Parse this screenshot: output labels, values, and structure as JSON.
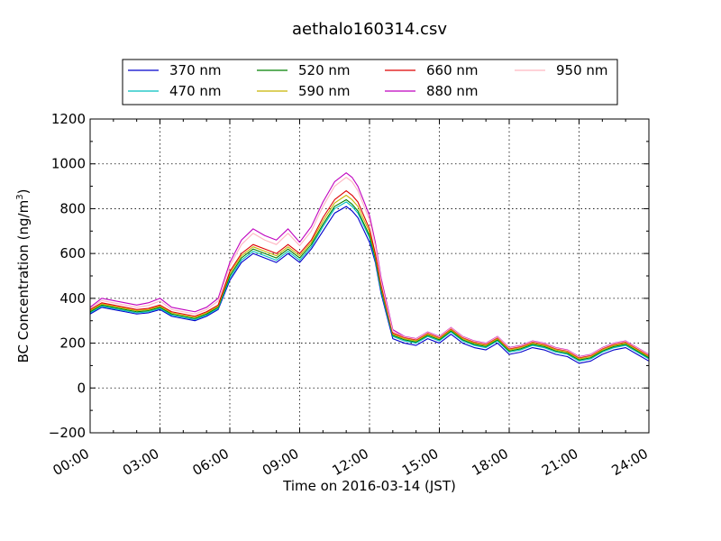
{
  "chart_data": {
    "type": "line",
    "title": "aethalo160314.csv",
    "xlabel": "Time on 2016-03-14 (JST)",
    "ylabel": "BC Concentration (ng/m³)",
    "ylabel_main": "BC Concentration (ng/m",
    "ylabel_sup": "3",
    "ylabel_end": ")",
    "x_unit": "hour",
    "xlim": [
      0,
      24
    ],
    "ylim": [
      -200,
      1200
    ],
    "grid": true,
    "legend_position": "top",
    "x_ticks": [
      {
        "value": 0,
        "label": "00:00"
      },
      {
        "value": 3,
        "label": "03:00"
      },
      {
        "value": 6,
        "label": "06:00"
      },
      {
        "value": 9,
        "label": "09:00"
      },
      {
        "value": 12,
        "label": "12:00"
      },
      {
        "value": 15,
        "label": "15:00"
      },
      {
        "value": 18,
        "label": "18:00"
      },
      {
        "value": 21,
        "label": "21:00"
      },
      {
        "value": 24,
        "label": "24:00"
      }
    ],
    "y_ticks": [
      {
        "value": -200,
        "label": "−200"
      },
      {
        "value": 0,
        "label": "0"
      },
      {
        "value": 200,
        "label": "200"
      },
      {
        "value": 400,
        "label": "400"
      },
      {
        "value": 600,
        "label": "600"
      },
      {
        "value": 800,
        "label": "800"
      },
      {
        "value": 1000,
        "label": "1000"
      },
      {
        "value": 1200,
        "label": "1200"
      }
    ],
    "x": [
      0,
      0.5,
      1,
      1.5,
      2,
      2.5,
      3,
      3.5,
      4,
      4.5,
      5,
      5.5,
      6,
      6.5,
      7,
      7.5,
      8,
      8.5,
      9,
      9.5,
      10,
      10.5,
      11,
      11.25,
      11.5,
      12,
      12.25,
      12.5,
      13,
      13.5,
      14,
      14.5,
      15,
      15.5,
      16,
      16.5,
      17,
      17.5,
      18,
      18.5,
      19,
      19.5,
      20,
      20.5,
      21,
      21.5,
      22,
      22.5,
      23,
      23.5,
      24
    ],
    "series": [
      {
        "name": "370 nm",
        "color": "#0000cc",
        "values": [
          330,
          360,
          350,
          340,
          330,
          335,
          350,
          320,
          310,
          300,
          320,
          350,
          480,
          560,
          600,
          580,
          560,
          600,
          560,
          620,
          700,
          780,
          810,
          790,
          760,
          650,
          560,
          420,
          220,
          200,
          190,
          220,
          200,
          240,
          200,
          180,
          170,
          200,
          150,
          160,
          180,
          170,
          150,
          140,
          110,
          120,
          150,
          170,
          180,
          150,
          120
        ]
      },
      {
        "name": "470 nm",
        "color": "#00bfbf",
        "values": [
          335,
          365,
          355,
          345,
          335,
          340,
          355,
          325,
          315,
          305,
          325,
          355,
          490,
          570,
          610,
          590,
          570,
          610,
          570,
          630,
          720,
          800,
          830,
          810,
          780,
          670,
          570,
          430,
          230,
          210,
          200,
          230,
          210,
          250,
          210,
          190,
          180,
          210,
          160,
          170,
          190,
          180,
          160,
          150,
          120,
          130,
          160,
          180,
          190,
          160,
          130
        ]
      },
      {
        "name": "520 nm",
        "color": "#008000",
        "values": [
          340,
          370,
          360,
          350,
          340,
          345,
          360,
          330,
          320,
          310,
          330,
          360,
          500,
          580,
          620,
          600,
          580,
          620,
          580,
          640,
          730,
          810,
          840,
          820,
          790,
          680,
          580,
          440,
          235,
          215,
          205,
          235,
          215,
          255,
          215,
          195,
          185,
          215,
          165,
          175,
          195,
          185,
          165,
          155,
          125,
          135,
          165,
          185,
          195,
          165,
          135
        ]
      },
      {
        "name": "590 nm",
        "color": "#c8b400",
        "values": [
          345,
          375,
          365,
          355,
          345,
          350,
          365,
          335,
          325,
          315,
          335,
          365,
          510,
          590,
          630,
          610,
          590,
          630,
          590,
          650,
          745,
          825,
          860,
          840,
          810,
          695,
          590,
          450,
          240,
          220,
          210,
          240,
          220,
          260,
          220,
          200,
          190,
          220,
          170,
          180,
          200,
          190,
          170,
          160,
          130,
          140,
          170,
          190,
          200,
          170,
          140
        ]
      },
      {
        "name": "660 nm",
        "color": "#dd0000",
        "values": [
          350,
          380,
          370,
          360,
          350,
          355,
          370,
          340,
          330,
          320,
          340,
          370,
          520,
          600,
          640,
          620,
          600,
          640,
          600,
          660,
          760,
          840,
          880,
          860,
          830,
          710,
          600,
          460,
          245,
          225,
          215,
          245,
          225,
          265,
          225,
          205,
          195,
          225,
          175,
          185,
          205,
          195,
          175,
          165,
          135,
          145,
          175,
          195,
          205,
          175,
          145
        ]
      },
      {
        "name": "880 nm",
        "color": "#bf00bf",
        "values": [
          360,
          400,
          390,
          380,
          370,
          380,
          400,
          360,
          350,
          340,
          360,
          400,
          560,
          660,
          710,
          680,
          660,
          710,
          650,
          720,
          830,
          920,
          960,
          940,
          900,
          770,
          650,
          490,
          260,
          230,
          220,
          250,
          230,
          270,
          230,
          210,
          200,
          230,
          180,
          190,
          210,
          200,
          180,
          170,
          140,
          150,
          180,
          200,
          210,
          180,
          150
        ]
      },
      {
        "name": "950 nm",
        "color": "#ffb6c1",
        "values": [
          355,
          390,
          380,
          370,
          360,
          368,
          388,
          350,
          340,
          330,
          350,
          388,
          545,
          640,
          690,
          660,
          640,
          690,
          635,
          700,
          810,
          900,
          940,
          920,
          880,
          750,
          635,
          475,
          252,
          228,
          218,
          248,
          228,
          268,
          228,
          208,
          198,
          228,
          178,
          188,
          208,
          198,
          178,
          168,
          138,
          148,
          178,
          198,
          208,
          178,
          148
        ]
      }
    ]
  }
}
